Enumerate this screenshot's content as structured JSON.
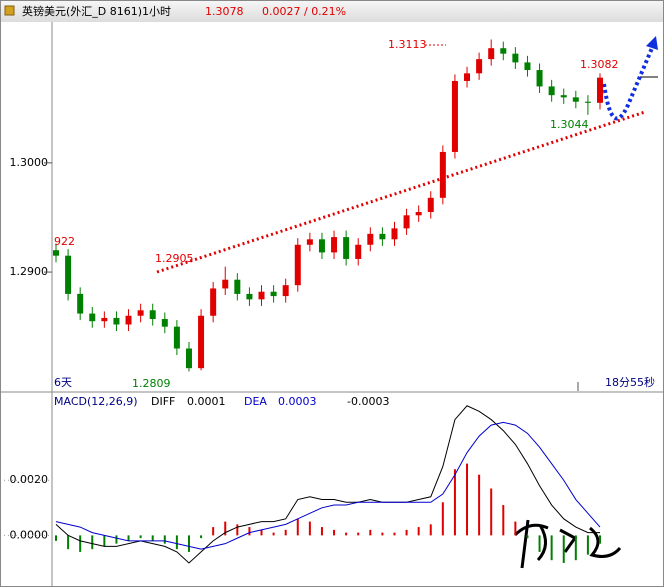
{
  "header": {
    "title": "英镑美元(外汇_D 8161)1小时",
    "price": "1.3078",
    "change": "0.0027 / 0.21%"
  },
  "chart_data": {
    "type": "candlestick",
    "up_color": "#e00000",
    "down_color": "#008000",
    "open": [
      1.292,
      1.2915,
      1.288,
      1.2862,
      1.2855,
      1.2858,
      1.2852,
      1.286,
      1.2865,
      1.2857,
      1.285,
      1.283,
      1.2812,
      1.286,
      1.2885,
      1.2893,
      1.288,
      1.2875,
      1.2882,
      1.2878,
      1.2888,
      1.2925,
      1.293,
      1.2918,
      1.2932,
      1.2912,
      1.2925,
      1.2935,
      1.293,
      1.294,
      1.2952,
      1.2955,
      1.2968,
      1.301,
      1.3075,
      1.3082,
      1.3095,
      1.3105,
      1.31,
      1.3092,
      1.3085,
      1.307,
      1.3062,
      1.306,
      1.3056,
      1.3055
    ],
    "high": [
      1.2926,
      1.2921,
      1.2886,
      1.2868,
      1.2864,
      1.2864,
      1.2866,
      1.2871,
      1.2871,
      1.2863,
      1.2856,
      1.2836,
      1.2866,
      1.2891,
      1.2905,
      1.2899,
      1.2886,
      1.2888,
      1.2888,
      1.2894,
      1.2931,
      1.2936,
      1.2936,
      1.2938,
      1.2938,
      1.2931,
      1.2941,
      1.2941,
      1.2946,
      1.2958,
      1.2961,
      1.2974,
      1.3016,
      1.3081,
      1.3088,
      1.3101,
      1.3113,
      1.3111,
      1.3106,
      1.3098,
      1.3091,
      1.3076,
      1.3068,
      1.3066,
      1.3062,
      1.3082
    ],
    "low": [
      1.2909,
      1.2874,
      1.2856,
      1.2849,
      1.2849,
      1.2846,
      1.2846,
      1.2854,
      1.2851,
      1.2844,
      1.2824,
      1.2809,
      1.281,
      1.2854,
      1.2879,
      1.2874,
      1.2869,
      1.2869,
      1.2872,
      1.2872,
      1.2882,
      1.2919,
      1.2912,
      1.2912,
      1.2906,
      1.2906,
      1.2919,
      1.2924,
      1.2924,
      1.2934,
      1.2946,
      1.2949,
      1.2962,
      1.3004,
      1.3069,
      1.3076,
      1.3089,
      1.3094,
      1.3086,
      1.3079,
      1.3064,
      1.3056,
      1.3054,
      1.305,
      1.3044,
      1.3049
    ],
    "close": [
      1.2915,
      1.288,
      1.2862,
      1.2855,
      1.2858,
      1.2852,
      1.286,
      1.2865,
      1.2857,
      1.285,
      1.283,
      1.2812,
      1.286,
      1.2885,
      1.2893,
      1.288,
      1.2875,
      1.2882,
      1.2878,
      1.2888,
      1.2925,
      1.293,
      1.2918,
      1.2932,
      1.2912,
      1.2925,
      1.2935,
      1.293,
      1.294,
      1.2952,
      1.2955,
      1.2968,
      1.301,
      1.3075,
      1.3082,
      1.3095,
      1.3105,
      1.31,
      1.3092,
      1.3085,
      1.307,
      1.3062,
      1.306,
      1.3056,
      1.3055,
      1.3078
    ],
    "ylim": [
      1.2792,
      1.3129
    ],
    "yticks": [
      {
        "value": 1.3,
        "label": "1.3000"
      },
      {
        "value": 1.29,
        "label": "1.2900"
      }
    ],
    "annotations": [
      {
        "text": "922",
        "color": "#e00000"
      },
      {
        "text": "1.2905",
        "color": "#e00000"
      },
      {
        "text": "1.2809",
        "color": "#008000"
      },
      {
        "text": "1.3113",
        "color": "#e00000"
      },
      {
        "text": "1.3082",
        "color": "#e00000"
      },
      {
        "text": "1.3044",
        "color": "#008000"
      },
      {
        "text": "6天",
        "color": "#000080"
      },
      {
        "text": "18分55秒",
        "color": "#000080"
      }
    ],
    "macd": {
      "label": "MACD(12,26,9)",
      "diff_label": "DIFF",
      "diff_value": "0.0001",
      "dea_label": "DEA",
      "dea_value": "0.0003",
      "macd_value": "-0.0003",
      "diff_color": "#000000",
      "dea_color": "#0000cc",
      "hist": [
        -0.0002,
        -0.0005,
        -0.0006,
        -0.0005,
        -0.0004,
        -0.0003,
        -0.0002,
        -0.0001,
        -0.0002,
        -0.0003,
        -0.0005,
        -0.0006,
        -0.0001,
        0.0003,
        0.0005,
        0.0004,
        0.0003,
        0.0002,
        0.0001,
        0.0002,
        0.0006,
        0.0005,
        0.0003,
        0.0002,
        0.0001,
        0.0001,
        0.0002,
        0.0001,
        0.0001,
        0.0002,
        0.0003,
        0.0004,
        0.0012,
        0.0024,
        0.0026,
        0.0022,
        0.0017,
        0.0011,
        0.0005,
        -0.0001,
        -0.0006,
        -0.0009,
        -0.001,
        -0.0009,
        -0.0007,
        -0.0003
      ],
      "diff": [
        0.0004,
        0.0,
        -0.0002,
        -0.0003,
        -0.0004,
        -0.0004,
        -0.0003,
        -0.0002,
        -0.0003,
        -0.0004,
        -0.0006,
        -0.001,
        -0.0006,
        -0.0002,
        0.0001,
        0.0003,
        0.0004,
        0.0005,
        0.0005,
        0.0006,
        0.0013,
        0.0014,
        0.0013,
        0.0013,
        0.0012,
        0.0012,
        0.0013,
        0.0012,
        0.0012,
        0.0012,
        0.0013,
        0.0014,
        0.0025,
        0.0042,
        0.0047,
        0.0045,
        0.0042,
        0.0038,
        0.0033,
        0.0026,
        0.0018,
        0.0011,
        0.0006,
        0.0003,
        0.0001,
        0.0001
      ],
      "dea": [
        0.0005,
        0.0004,
        0.0003,
        0.0001,
        0.0,
        -0.0001,
        -0.0002,
        -0.0002,
        -0.0002,
        -0.0002,
        -0.0003,
        -0.0004,
        -0.0005,
        -0.0004,
        -0.0003,
        -0.0001,
        0.0001,
        0.0002,
        0.0003,
        0.0004,
        0.0006,
        0.0008,
        0.001,
        0.0011,
        0.0011,
        0.0012,
        0.0012,
        0.0012,
        0.0012,
        0.0012,
        0.0012,
        0.0012,
        0.0015,
        0.0022,
        0.003,
        0.0036,
        0.004,
        0.0041,
        0.004,
        0.0037,
        0.0032,
        0.0026,
        0.002,
        0.0013,
        0.0008,
        0.0003
      ],
      "ylim": [
        -0.0018,
        0.0052
      ],
      "yticks": [
        {
          "value": 0.002,
          "label": "0.0020"
        },
        {
          "value": 0,
          "label": "0.0000"
        }
      ]
    }
  }
}
